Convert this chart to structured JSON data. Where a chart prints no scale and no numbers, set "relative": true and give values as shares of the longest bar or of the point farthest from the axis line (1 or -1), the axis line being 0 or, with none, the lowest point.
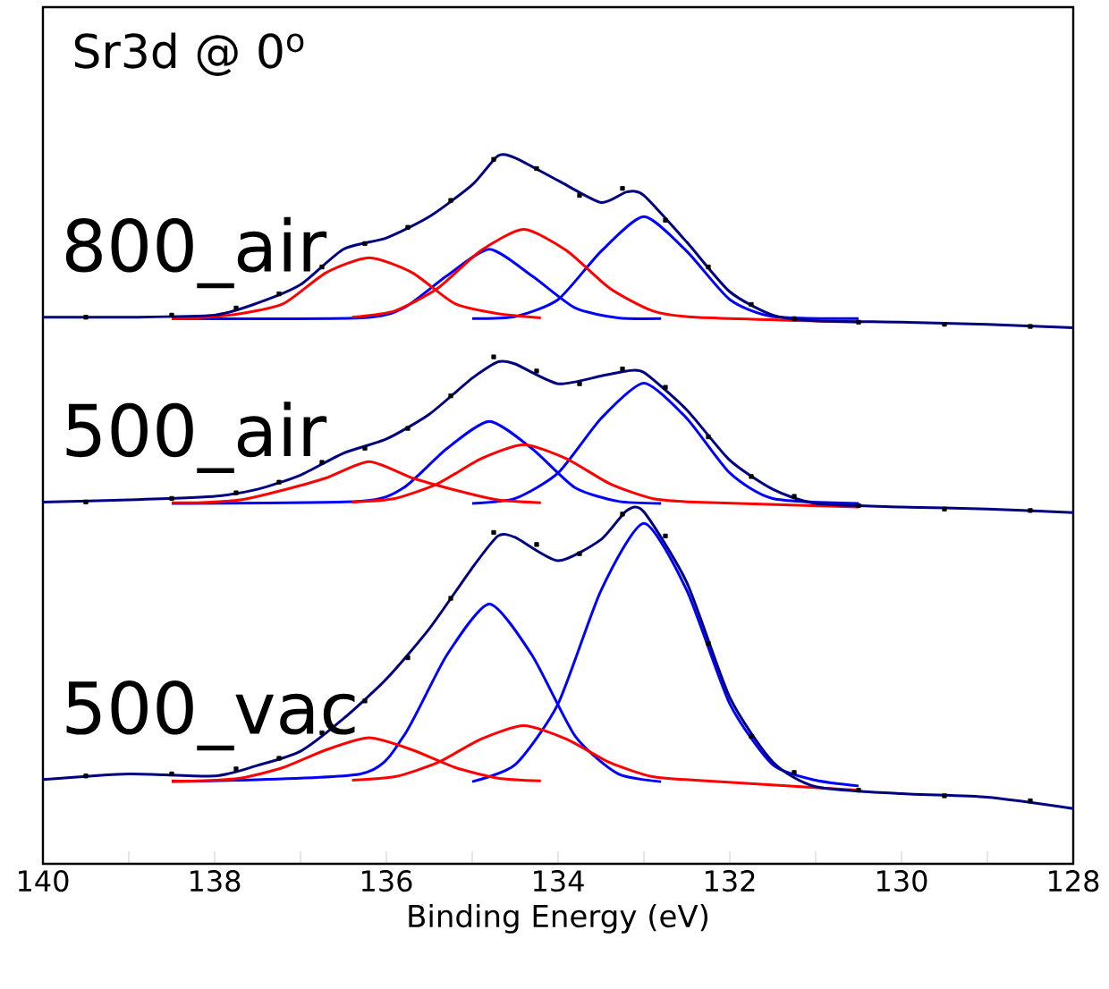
{
  "chart_data": {
    "type": "line",
    "relative": true,
    "title": "Sr3d @ 0$^{o}$",
    "xlabel": "Binding Energy (eV)",
    "xlim": [
      140,
      128
    ],
    "xticks": [
      140,
      {
        "value": 139,
        "label": null
      },
      138,
      {
        "value": 137,
        "label": null
      },
      136,
      {
        "value": 135,
        "label": null
      },
      134,
      {
        "value": 133,
        "label": null
      },
      132,
      {
        "value": 131,
        "label": null
      },
      130,
      {
        "value": 129,
        "label": null
      },
      128
    ],
    "series": [
      {
        "color": "#0000ff",
        "x": [
          138.5,
          136.3,
          135.8,
          135.3,
          134.8,
          134.3,
          133.8,
          133.3,
          132.8
        ],
        "values": [
          0.77,
          0.771,
          0.785,
          0.83,
          0.868,
          0.83,
          0.785,
          0.771,
          0.77
        ]
      },
      {
        "color": "#0000ff",
        "x": [
          135,
          134.5,
          134,
          133.5,
          133,
          132.5,
          132,
          131.5,
          130.5
        ],
        "values": [
          0.77,
          0.773,
          0.797,
          0.865,
          0.914,
          0.865,
          0.797,
          0.773,
          0.77
        ]
      },
      {
        "color": "#ff0000",
        "x": [
          138.5,
          138.2,
          137.7,
          137.2,
          136.7,
          136.2,
          135.7,
          135.2,
          134.7,
          134.2
        ],
        "values": [
          0.771,
          0.771,
          0.777,
          0.791,
          0.835,
          0.856,
          0.835,
          0.791,
          0.777,
          0.771
        ]
      },
      {
        "color": "#ff0000",
        "x": [
          136.4,
          135.9,
          135.4,
          134.9,
          134.4,
          133.9,
          133.4,
          132.9,
          132.4,
          130.5
        ],
        "values": [
          0.772,
          0.781,
          0.813,
          0.866,
          0.896,
          0.866,
          0.813,
          0.781,
          0.772,
          0.765
        ]
      },
      {
        "name": "800_air",
        "color": "#000080",
        "x": [
          140,
          139,
          138,
          137.5,
          137,
          136.5,
          136,
          135.5,
          135,
          134.7,
          134.5,
          134,
          133.5,
          133.2,
          133,
          132.5,
          132,
          131.5,
          131,
          130,
          129,
          128
        ],
        "values": [
          0.772,
          0.772,
          0.775,
          0.792,
          0.818,
          0.868,
          0.884,
          0.914,
          0.959,
          1.0,
          0.997,
          0.965,
          0.934,
          0.949,
          0.944,
          0.878,
          0.808,
          0.775,
          0.767,
          0.765,
          0.762,
          0.757
        ]
      },
      {
        "type": "scatter",
        "marker": "square",
        "color": "#000000",
        "x": [
          139.5,
          138.5,
          137.75,
          137.25,
          136.75,
          136.25,
          135.75,
          135.25,
          134.75,
          134.25,
          133.75,
          133.25,
          132.75,
          132.25,
          131.75,
          131.25,
          130.5,
          129.5,
          128.5
        ],
        "values": [
          0.772,
          0.775,
          0.785,
          0.805,
          0.843,
          0.876,
          0.899,
          0.937,
          0.995,
          0.982,
          0.944,
          0.954,
          0.909,
          0.843,
          0.79,
          0.77,
          0.765,
          0.762,
          0.759
        ]
      },
      {
        "color": "#0000ff",
        "x": [
          138.5,
          136.3,
          135.8,
          135.3,
          134.8,
          134.3,
          133.8,
          133.3,
          132.8
        ],
        "values": [
          0.509,
          0.512,
          0.531,
          0.586,
          0.625,
          0.586,
          0.531,
          0.512,
          0.509
        ]
      },
      {
        "color": "#0000ff",
        "x": [
          135,
          134.5,
          134,
          133.5,
          133,
          132.5,
          132,
          131.5,
          130.5
        ],
        "values": [
          0.509,
          0.516,
          0.552,
          0.629,
          0.679,
          0.629,
          0.552,
          0.516,
          0.509
        ]
      },
      {
        "color": "#ff0000",
        "x": [
          138.5,
          138.2,
          137.7,
          137.2,
          136.7,
          136.2,
          135.7,
          135.2,
          134.7,
          134.2
        ],
        "values": [
          0.51,
          0.51,
          0.514,
          0.528,
          0.545,
          0.568,
          0.545,
          0.528,
          0.514,
          0.51
        ]
      },
      {
        "color": "#ff0000",
        "x": [
          136.4,
          135.9,
          135.4,
          134.9,
          134.4,
          133.9,
          133.4,
          132.9,
          132.4,
          130.5
        ],
        "values": [
          0.511,
          0.516,
          0.537,
          0.572,
          0.592,
          0.572,
          0.537,
          0.516,
          0.511,
          0.504
        ]
      },
      {
        "name": "500_air",
        "color": "#000080",
        "x": [
          140,
          139,
          138,
          137.5,
          137,
          136.5,
          136,
          135.5,
          135,
          134.7,
          134.5,
          134,
          133.5,
          133.2,
          133,
          132.5,
          132,
          131.5,
          131,
          130,
          129,
          128
        ],
        "values": [
          0.511,
          0.514,
          0.519,
          0.529,
          0.549,
          0.58,
          0.6,
          0.635,
          0.686,
          0.709,
          0.706,
          0.678,
          0.689,
          0.696,
          0.694,
          0.641,
          0.57,
          0.529,
          0.509,
          0.504,
          0.501,
          0.496
        ]
      },
      {
        "type": "scatter",
        "marker": "square",
        "color": "#000000",
        "x": [
          139.5,
          138.5,
          137.75,
          137.25,
          136.75,
          136.25,
          135.75,
          135.25,
          134.75,
          134.25,
          133.75,
          133.25,
          132.75,
          132.25,
          131.75,
          131.25,
          130.5,
          129.5,
          128.5
        ],
        "values": [
          0.511,
          0.516,
          0.524,
          0.539,
          0.567,
          0.587,
          0.615,
          0.661,
          0.716,
          0.696,
          0.678,
          0.699,
          0.673,
          0.603,
          0.547,
          0.519,
          0.506,
          0.501,
          0.499
        ]
      },
      {
        "color": "#0000ff",
        "x": [
          138.5,
          136.3,
          135.8,
          135.3,
          134.8,
          134.3,
          133.8,
          133.3,
          132.8
        ],
        "values": [
          0.116,
          0.127,
          0.18,
          0.294,
          0.367,
          0.294,
          0.18,
          0.127,
          0.116
        ]
      },
      {
        "color": "#0000ff",
        "x": [
          135,
          134.5,
          134,
          133.5,
          133,
          132.5,
          132,
          131.5,
          131,
          130.5
        ],
        "values": [
          0.116,
          0.14,
          0.226,
          0.386,
          0.481,
          0.386,
          0.226,
          0.14,
          0.118,
          0.11
        ]
      },
      {
        "color": "#ff0000",
        "x": [
          138.5,
          138.2,
          137.7,
          137.2,
          136.7,
          136.2,
          135.7,
          135.2,
          134.7,
          134.2
        ],
        "values": [
          0.117,
          0.117,
          0.121,
          0.136,
          0.161,
          0.178,
          0.161,
          0.136,
          0.121,
          0.117
        ]
      },
      {
        "color": "#ff0000",
        "x": [
          136.4,
          135.9,
          135.4,
          134.9,
          134.4,
          133.9,
          133.4,
          132.9,
          132.4,
          130.5
        ],
        "values": [
          0.118,
          0.123,
          0.143,
          0.176,
          0.195,
          0.176,
          0.143,
          0.123,
          0.118,
          0.104
        ]
      },
      {
        "name": "500_vac",
        "color": "#000080",
        "x": [
          140,
          139,
          138,
          137.5,
          137,
          136.5,
          136,
          135.5,
          135,
          134.7,
          134.5,
          134,
          133.5,
          133.2,
          133,
          132.5,
          132,
          131.5,
          131,
          130,
          129,
          128
        ],
        "values": [
          0.119,
          0.127,
          0.124,
          0.139,
          0.159,
          0.205,
          0.261,
          0.332,
          0.418,
          0.463,
          0.461,
          0.428,
          0.458,
          0.499,
          0.497,
          0.397,
          0.235,
          0.144,
          0.109,
          0.099,
          0.094,
          0.078
        ]
      },
      {
        "type": "scatter",
        "marker": "square",
        "color": "#000000",
        "x": [
          139.5,
          138.5,
          137.75,
          137.25,
          136.75,
          136.25,
          135.75,
          135.25,
          134.75,
          134.25,
          133.75,
          133.25,
          132.75,
          132.25,
          131.75,
          131.25,
          130.5,
          129.5,
          128.5
        ],
        "values": [
          0.124,
          0.127,
          0.134,
          0.149,
          0.185,
          0.23,
          0.291,
          0.375,
          0.468,
          0.451,
          0.438,
          0.494,
          0.463,
          0.311,
          0.18,
          0.129,
          0.104,
          0.096,
          0.089
        ]
      }
    ]
  }
}
